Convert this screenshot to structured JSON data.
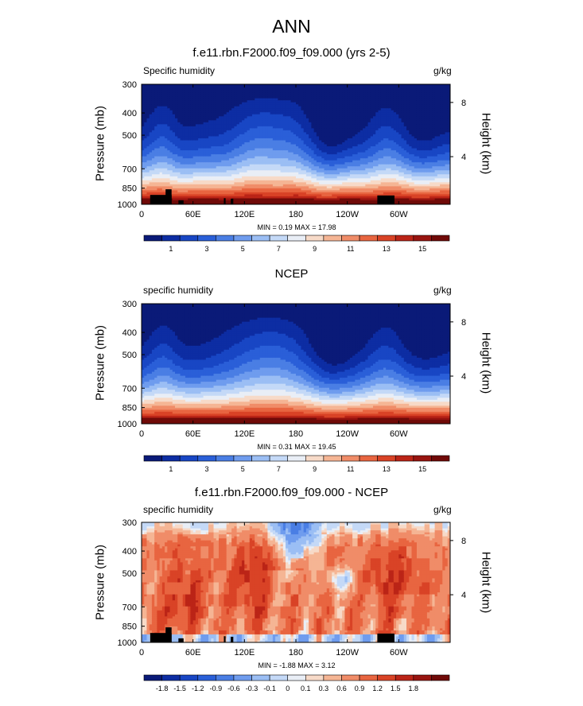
{
  "title": "ANN",
  "chart_data": [
    {
      "type": "heatmap",
      "title": "f.e11.rbn.F2000.f09_f09.000 (yrs 2-5)",
      "variable": "Specific humidity",
      "units": "g/kg",
      "xlabel": "",
      "ylabel": "Pressure (mb)",
      "ylabel_right": "Height (km)",
      "x_ticks": [
        "0",
        "60E",
        "120E",
        "180",
        "120W",
        "60W"
      ],
      "x_tick_values": [
        0,
        60,
        120,
        180,
        240,
        300
      ],
      "xlim": [
        0,
        360
      ],
      "y_ticks": [
        300,
        400,
        500,
        700,
        850,
        1000
      ],
      "ylim": [
        1000,
        300
      ],
      "y_scale": "log",
      "right_ticks": [
        4,
        8
      ],
      "min_label": "MIN =   0.19   MAX =   17.98",
      "min": 0.19,
      "max": 17.98,
      "colorbar": {
        "levels": [
          0,
          1,
          2,
          3,
          4,
          5,
          6,
          7,
          8,
          9,
          10,
          11,
          12,
          13,
          14,
          15,
          16
        ],
        "labels": [
          "1",
          "3",
          "5",
          "7",
          "9",
          "11",
          "13",
          "15"
        ],
        "label_values": [
          1,
          3,
          5,
          7,
          9,
          11,
          13,
          15
        ],
        "colors": [
          "#0a1a78",
          "#0d2da3",
          "#1846c4",
          "#2a5fd8",
          "#4a7ee4",
          "#6f9cee",
          "#9bbef4",
          "#c4d9f7",
          "#e9eef6",
          "#f7dac8",
          "#f5b594",
          "#f08c68",
          "#e86540",
          "#d94326",
          "#bb2417",
          "#981410",
          "#700a08"
        ]
      },
      "topography": true
    },
    {
      "type": "heatmap",
      "title": "NCEP",
      "variable": "specific humidity",
      "units": "g/kg",
      "xlabel": "",
      "ylabel": "Pressure (mb)",
      "ylabel_right": "Height (km)",
      "x_ticks": [
        "0",
        "60E",
        "120E",
        "180",
        "120W",
        "60W"
      ],
      "x_tick_values": [
        0,
        60,
        120,
        180,
        240,
        300
      ],
      "xlim": [
        0,
        360
      ],
      "y_ticks": [
        300,
        400,
        500,
        700,
        850,
        1000
      ],
      "ylim": [
        1000,
        300
      ],
      "y_scale": "log",
      "right_ticks": [
        4,
        8
      ],
      "min_label": "MIN =   0.31   MAX =   19.45",
      "min": 0.31,
      "max": 19.45,
      "colorbar": {
        "levels": [
          0,
          1,
          2,
          3,
          4,
          5,
          6,
          7,
          8,
          9,
          10,
          11,
          12,
          13,
          14,
          15,
          16
        ],
        "labels": [
          "1",
          "3",
          "5",
          "7",
          "9",
          "11",
          "13",
          "15"
        ],
        "label_values": [
          1,
          3,
          5,
          7,
          9,
          11,
          13,
          15
        ],
        "colors": [
          "#0a1a78",
          "#0d2da3",
          "#1846c4",
          "#2a5fd8",
          "#4a7ee4",
          "#6f9cee",
          "#9bbef4",
          "#c4d9f7",
          "#e9eef6",
          "#f7dac8",
          "#f5b594",
          "#f08c68",
          "#e86540",
          "#d94326",
          "#bb2417",
          "#981410",
          "#700a08"
        ]
      },
      "topography": false
    },
    {
      "type": "heatmap",
      "title": "f.e11.rbn.F2000.f09_f09.000 - NCEP",
      "variable": "specific humidity",
      "units": "g/kg",
      "xlabel": "",
      "ylabel": "Pressure (mb)",
      "ylabel_right": "Height (km)",
      "x_ticks": [
        "0",
        "60E",
        "120E",
        "180",
        "120W",
        "60W"
      ],
      "x_tick_values": [
        0,
        60,
        120,
        180,
        240,
        300
      ],
      "xlim": [
        0,
        360
      ],
      "y_ticks": [
        300,
        400,
        500,
        700,
        850,
        1000
      ],
      "ylim": [
        1000,
        300
      ],
      "y_scale": "log",
      "right_ticks": [
        4,
        8
      ],
      "min_label": "MIN =   -1.88   MAX =   3.12",
      "min": -1.88,
      "max": 3.12,
      "colorbar": {
        "levels": [
          -2.1,
          -1.8,
          -1.5,
          -1.2,
          -0.9,
          -0.6,
          -0.3,
          -0.1,
          0,
          0.1,
          0.3,
          0.6,
          0.9,
          1.2,
          1.5,
          1.8,
          2.1
        ],
        "labels": [
          "-1.8",
          "-1.5",
          "-1.2",
          "-0.9",
          "-0.6",
          "-0.3",
          "-0.1",
          "0",
          "0.1",
          "0.3",
          "0.6",
          "0.9",
          "1.2",
          "1.5",
          "1.8"
        ],
        "label_values": [
          -1.8,
          -1.5,
          -1.2,
          -0.9,
          -0.6,
          -0.3,
          -0.1,
          0,
          0.1,
          0.3,
          0.6,
          0.9,
          1.2,
          1.5,
          1.8
        ],
        "colors": [
          "#0a1a78",
          "#0d2da3",
          "#1846c4",
          "#2a5fd8",
          "#4a7ee4",
          "#6f9cee",
          "#9bbef4",
          "#c4d9f7",
          "#e9eef6",
          "#f7dac8",
          "#f5b594",
          "#f08c68",
          "#e86540",
          "#d94326",
          "#bb2417",
          "#981410",
          "#700a08"
        ]
      },
      "topography": true
    }
  ]
}
